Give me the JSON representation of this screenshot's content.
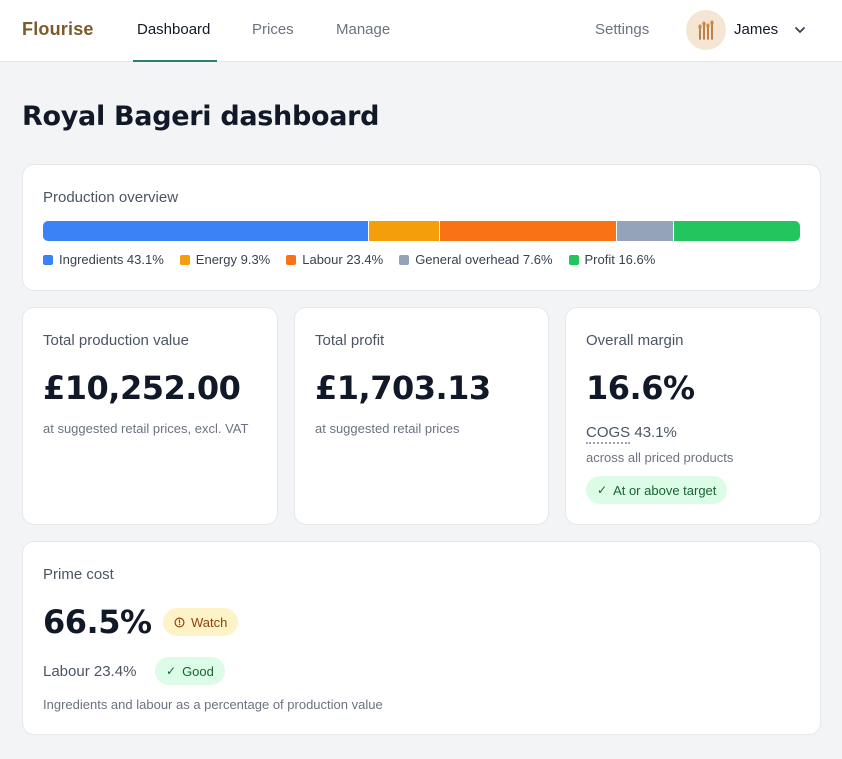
{
  "nav": {
    "brand": "Flourise",
    "links": [
      {
        "label": "Dashboard",
        "active": true
      },
      {
        "label": "Prices",
        "active": false
      },
      {
        "label": "Manage",
        "active": false
      }
    ],
    "settings": "Settings",
    "user": {
      "name": "James",
      "avatar_icon": "wheat-icon"
    }
  },
  "page": {
    "title": "Royal Bageri dashboard"
  },
  "overview": {
    "title": "Production overview",
    "segments": [
      {
        "label": "Ingredients 43.1%",
        "value": 43.1,
        "color": "#3b82f6"
      },
      {
        "label": "Energy 9.3%",
        "value": 9.3,
        "color": "#f59e0b"
      },
      {
        "label": "Labour 23.4%",
        "value": 23.4,
        "color": "#f97316"
      },
      {
        "label": "General overhead 7.6%",
        "value": 7.6,
        "color": "#94a3b8"
      },
      {
        "label": "Profit 16.6%",
        "value": 16.6,
        "color": "#22c55e"
      }
    ]
  },
  "cards": {
    "production": {
      "title": "Total production value",
      "value": "£10,252.00",
      "sub": "at suggested retail prices, excl. VAT"
    },
    "profit": {
      "title": "Total profit",
      "value": "£1,703.13",
      "sub": "at suggested retail prices"
    },
    "margin": {
      "title": "Overall margin",
      "value": "16.6%",
      "cogs_label": "COGS",
      "cogs_value": "43.1%",
      "sub": "across all priced products",
      "badge": "At or above target"
    },
    "prime": {
      "title": "Prime cost",
      "value": "66.5%",
      "watch_badge": "Watch",
      "labour_label": "Labour 23.4%",
      "good_badge": "Good",
      "sub": "Ingredients and labour as a percentage of production value"
    }
  },
  "colors": {
    "accent": "#2f7d6d",
    "brand": "#7c5a2c"
  }
}
